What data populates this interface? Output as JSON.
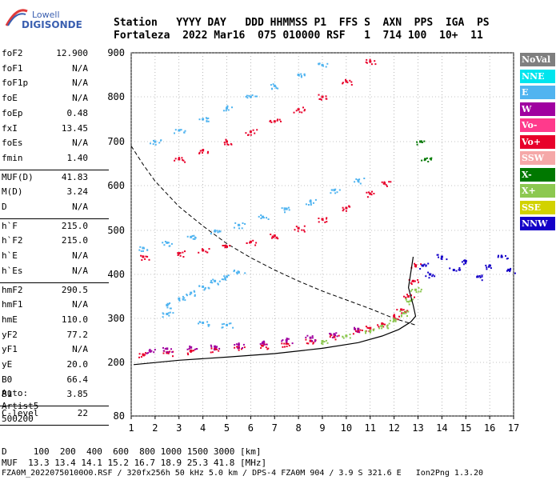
{
  "logo": {
    "word1": "Lowell",
    "word2": "DIGISONDE"
  },
  "header": {
    "line1": "Station   YYYY DAY   DDD HHMMSS P1  FFS S  AXN  PPS  IGA  PS",
    "line2": "Fortaleza  2022 Mar16  075 010000 RSF   1  714 100  10+  11"
  },
  "params": [
    {
      "label": "foF2",
      "value": "12.900"
    },
    {
      "label": "foF1",
      "value": "N/A"
    },
    {
      "label": "foF1p",
      "value": "N/A"
    },
    {
      "label": "foE",
      "value": "N/A"
    },
    {
      "label": "foEp",
      "value": "0.48"
    },
    {
      "label": "fxI",
      "value": "13.45"
    },
    {
      "label": "foEs",
      "value": "N/A"
    },
    {
      "label": "fmin",
      "value": "1.40"
    },
    {
      "label": "MUF(D)",
      "value": "41.83"
    },
    {
      "label": "M(D)",
      "value": "3.24"
    },
    {
      "label": "D",
      "value": "N/A"
    },
    {
      "label": "h`F",
      "value": "215.0"
    },
    {
      "label": "h`F2",
      "value": "215.0"
    },
    {
      "label": "h`E",
      "value": "N/A"
    },
    {
      "label": "h`Es",
      "value": "N/A"
    },
    {
      "label": "hmF2",
      "value": "290.5"
    },
    {
      "label": "hmF1",
      "value": "N/A"
    },
    {
      "label": "hmE",
      "value": "110.0"
    },
    {
      "label": "yF2",
      "value": "77.2"
    },
    {
      "label": "yF1",
      "value": "N/A"
    },
    {
      "label": "yE",
      "value": "20.0"
    },
    {
      "label": "B0",
      "value": "66.4"
    },
    {
      "label": "B1",
      "value": "3.85"
    },
    {
      "label": "C-level",
      "value": "22"
    }
  ],
  "auto": {
    "line1": "Auto:",
    "line2": "Artist5",
    "line3": "500200"
  },
  "legend": [
    {
      "label": "NoVal",
      "color": "#7f7f7f"
    },
    {
      "label": "NNE",
      "color": "#00e5ee"
    },
    {
      "label": "E",
      "color": "#50b4f0"
    },
    {
      "label": "W",
      "color": "#a000a0"
    },
    {
      "label": "Vo-",
      "color": "#ff3a8c"
    },
    {
      "label": "Vo+",
      "color": "#e8002a"
    },
    {
      "label": "SSW",
      "color": "#f5a8a8"
    },
    {
      "label": "X-",
      "color": "#007800"
    },
    {
      "label": "X+",
      "color": "#8cc850"
    },
    {
      "label": "SSE",
      "color": "#d2d200"
    },
    {
      "label": "NNW",
      "color": "#1400c8"
    }
  ],
  "footer": {
    "d_line": "D     100  200  400  600  800 1000 1500 3000 [km]",
    "muf_line": "MUF  13.3 13.4 14.1 15.2 16.7 18.9 25.3 41.8 [MHz]",
    "file_line": "FZA0M_20220750100O0.RSF / 320fx256h 50 kHz 5.0 km / DPS-4 FZA0M 904 / 3.9 S 321.6 E   Ion2Png 1.3.20"
  },
  "chart_data": {
    "type": "scatter",
    "title": "",
    "xlabel": "",
    "ylabel": "",
    "xlim": [
      1,
      17
    ],
    "ylim": [
      80,
      900
    ],
    "xticks": [
      1,
      2,
      3,
      4,
      5,
      6,
      7,
      8,
      9,
      10,
      11,
      12,
      13,
      14,
      15,
      16,
      17
    ],
    "yticks": [
      80,
      200,
      300,
      400,
      500,
      600,
      700,
      800,
      900
    ],
    "grid": "dotted",
    "legend_position": "right",
    "series": [
      {
        "name": "Vo+",
        "color": "#e8002a",
        "points": [
          [
            1.5,
            218
          ],
          [
            2.5,
            222
          ],
          [
            3.5,
            226
          ],
          [
            4.5,
            230
          ],
          [
            5.5,
            234
          ],
          [
            6.5,
            238
          ],
          [
            7.5,
            243
          ],
          [
            8.5,
            249
          ],
          [
            9.5,
            258
          ],
          [
            10.5,
            270
          ],
          [
            11.0,
            278
          ],
          [
            11.5,
            288
          ],
          [
            12.0,
            305
          ],
          [
            12.3,
            320
          ],
          [
            12.6,
            350
          ],
          [
            12.8,
            385
          ],
          [
            12.9,
            420
          ]
        ]
      },
      {
        "name": "W",
        "color": "#a000a0",
        "points": [
          [
            1.8,
            225
          ],
          [
            2.5,
            231
          ],
          [
            3.5,
            234
          ],
          [
            4.5,
            236
          ],
          [
            5.5,
            240
          ],
          [
            6.5,
            244
          ],
          [
            7.5,
            250
          ],
          [
            8.5,
            256
          ],
          [
            9.5,
            264
          ],
          [
            10.5,
            276
          ]
        ]
      },
      {
        "name": "X+",
        "color": "#8cc850",
        "points": [
          [
            9.0,
            248
          ],
          [
            10.0,
            260
          ],
          [
            11.0,
            272
          ],
          [
            11.5,
            283
          ],
          [
            12.0,
            296
          ],
          [
            12.4,
            312
          ],
          [
            12.7,
            340
          ],
          [
            12.9,
            365
          ]
        ]
      },
      {
        "name": "Vo+ 2nd hop",
        "color": "#e8002a",
        "points": [
          [
            1.5,
            440
          ],
          [
            3.0,
            448
          ],
          [
            4.0,
            455
          ],
          [
            5.0,
            463
          ],
          [
            6.0,
            474
          ],
          [
            7.0,
            488
          ],
          [
            8.0,
            505
          ],
          [
            9.0,
            525
          ],
          [
            10.0,
            550
          ],
          [
            11.0,
            582
          ],
          [
            11.6,
            605
          ]
        ]
      },
      {
        "name": "E 2nd hop",
        "color": "#50b4f0",
        "points": [
          [
            1.5,
            460
          ],
          [
            2.5,
            472
          ],
          [
            3.5,
            485
          ],
          [
            4.5,
            498
          ],
          [
            5.5,
            512
          ],
          [
            6.5,
            530
          ],
          [
            7.5,
            548
          ],
          [
            8.5,
            565
          ],
          [
            9.5,
            590
          ],
          [
            10.5,
            612
          ]
        ]
      },
      {
        "name": "Vo+ 3rd hop",
        "color": "#e8002a",
        "points": [
          [
            3.0,
            660
          ],
          [
            4.0,
            680
          ],
          [
            5.0,
            700
          ],
          [
            6.0,
            722
          ],
          [
            7.0,
            745
          ],
          [
            8.0,
            772
          ],
          [
            9.0,
            800
          ],
          [
            10.0,
            835
          ],
          [
            11.0,
            880
          ]
        ]
      },
      {
        "name": "E 3rd hop",
        "color": "#50b4f0",
        "points": [
          [
            2.0,
            700
          ],
          [
            3.0,
            725
          ],
          [
            4.0,
            750
          ],
          [
            5.0,
            775
          ],
          [
            6.0,
            800
          ],
          [
            7.0,
            825
          ],
          [
            8.0,
            850
          ],
          [
            9.0,
            872
          ]
        ]
      },
      {
        "name": "E scatter",
        "color": "#50b4f0",
        "points": [
          [
            2.5,
            330
          ],
          [
            3.0,
            345
          ],
          [
            3.5,
            358
          ],
          [
            4.0,
            372
          ],
          [
            4.5,
            385
          ],
          [
            5.0,
            395
          ],
          [
            5.5,
            405
          ],
          [
            2.5,
            310
          ],
          [
            4.0,
            290
          ],
          [
            5.0,
            285
          ]
        ]
      },
      {
        "name": "Spread F",
        "color": "#1400c8",
        "points": [
          [
            13.2,
            420
          ],
          [
            13.5,
            400
          ],
          [
            14.0,
            440
          ],
          [
            14.5,
            410
          ],
          [
            15.0,
            430
          ],
          [
            15.5,
            395
          ],
          [
            16.0,
            420
          ],
          [
            16.5,
            440
          ],
          [
            16.8,
            410
          ]
        ]
      },
      {
        "name": "X- 2nd hop",
        "color": "#007800",
        "points": [
          [
            13.1,
            700
          ],
          [
            13.3,
            660
          ]
        ]
      }
    ],
    "profile_line": {
      "points": [
        [
          1.1,
          195
        ],
        [
          3,
          205
        ],
        [
          5,
          212
        ],
        [
          7,
          220
        ],
        [
          9,
          232
        ],
        [
          10.5,
          245
        ],
        [
          11.5,
          260
        ],
        [
          12.2,
          275
        ],
        [
          12.7,
          292
        ],
        [
          12.9,
          305
        ],
        [
          12.8,
          330
        ],
        [
          12.6,
          370
        ],
        [
          12.8,
          440
        ]
      ]
    },
    "muf_curve": {
      "points": [
        [
          1.0,
          690
        ],
        [
          1.5,
          648
        ],
        [
          2,
          610
        ],
        [
          3,
          553
        ],
        [
          4,
          510
        ],
        [
          5,
          470
        ],
        [
          6,
          438
        ],
        [
          7,
          410
        ],
        [
          8,
          385
        ],
        [
          9,
          362
        ],
        [
          10,
          342
        ],
        [
          11,
          322
        ],
        [
          12,
          300
        ],
        [
          12.9,
          285
        ]
      ]
    }
  }
}
